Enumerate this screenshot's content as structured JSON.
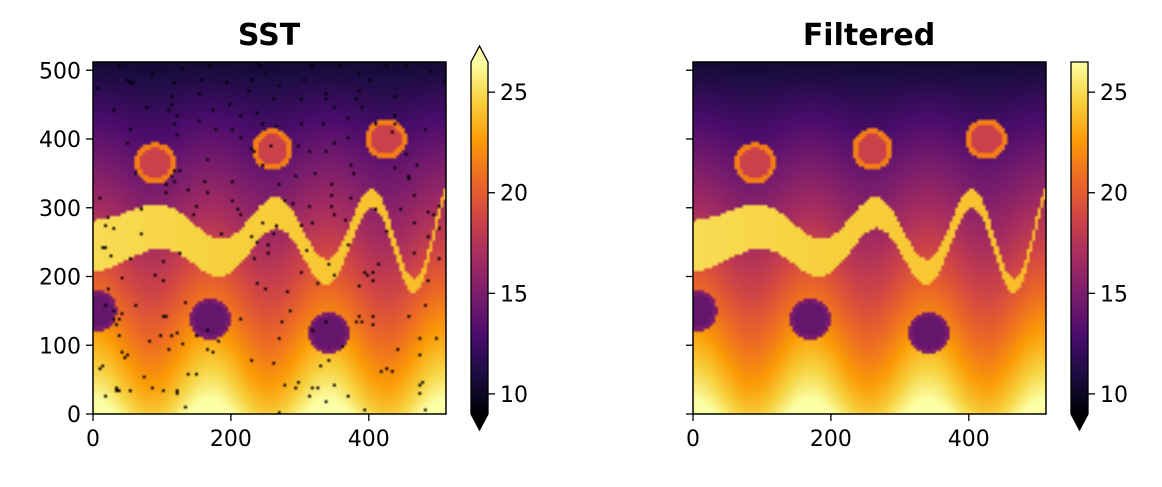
{
  "colors": {
    "inferno": [
      "#000004",
      "#1b0c41",
      "#4a0c6b",
      "#781c6d",
      "#a52c60",
      "#cf4446",
      "#ed6925",
      "#fb9b06",
      "#f7d13d",
      "#fcffa4"
    ]
  },
  "chart_data": [
    {
      "type": "heatmap",
      "title": "SST",
      "xlim": [
        0,
        512
      ],
      "ylim": [
        0,
        512
      ],
      "xticks": [
        0,
        200,
        400
      ],
      "yticks": [
        0,
        100,
        200,
        300,
        400,
        500
      ],
      "show_yticklabels": true,
      "noise": true,
      "colorbar": {
        "vmin": 9,
        "vmax": 26.5,
        "ticks": [
          10,
          15,
          20,
          25
        ],
        "extend": "both"
      },
      "features": {
        "warm_band_center_y": 255,
        "warm_band_value": 25,
        "warm_blobs": [
          {
            "x": 90,
            "y": 365,
            "value": 18.5
          },
          {
            "x": 260,
            "y": 385,
            "value": 18.5
          },
          {
            "x": 425,
            "y": 400,
            "value": 18.5
          }
        ],
        "cool_blobs": [
          {
            "x": 5,
            "y": 150,
            "value": 14
          },
          {
            "x": 170,
            "y": 138,
            "value": 14
          },
          {
            "x": 342,
            "y": 118,
            "value": 14
          }
        ]
      }
    },
    {
      "type": "heatmap",
      "title": "Filtered",
      "xlim": [
        0,
        512
      ],
      "ylim": [
        0,
        512
      ],
      "xticks": [
        0,
        200,
        400
      ],
      "yticks": [
        0,
        100,
        200,
        300,
        400,
        500
      ],
      "show_yticklabels": false,
      "noise": false,
      "colorbar": {
        "vmin": 9,
        "vmax": 26.5,
        "ticks": [
          10,
          15,
          20,
          25
        ],
        "extend": "min"
      },
      "features": {
        "warm_band_center_y": 255,
        "warm_band_value": 25,
        "warm_blobs": [
          {
            "x": 90,
            "y": 365,
            "value": 18.5
          },
          {
            "x": 260,
            "y": 385,
            "value": 18.5
          },
          {
            "x": 425,
            "y": 400,
            "value": 18.5
          }
        ],
        "cool_blobs": [
          {
            "x": 5,
            "y": 150,
            "value": 14
          },
          {
            "x": 170,
            "y": 138,
            "value": 14
          },
          {
            "x": 342,
            "y": 118,
            "value": 14
          }
        ]
      }
    }
  ]
}
